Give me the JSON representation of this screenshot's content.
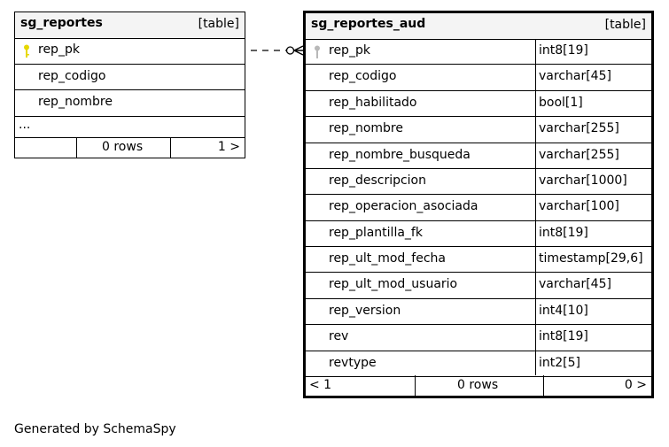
{
  "tables": [
    {
      "name": "sg_reportes",
      "kind": "[table]",
      "columns": [
        {
          "name": "rep_pk",
          "pk": true
        },
        {
          "name": "rep_codigo"
        },
        {
          "name": "rep_nombre"
        }
      ],
      "more": "...",
      "footer": {
        "left": "",
        "rows": "0 rows",
        "right": "1 >"
      }
    },
    {
      "name": "sg_reportes_aud",
      "kind": "[table]",
      "columns": [
        {
          "name": "rep_pk",
          "type": "int8[19]",
          "pk": true
        },
        {
          "name": "rep_codigo",
          "type": "varchar[45]"
        },
        {
          "name": "rep_habilitado",
          "type": "bool[1]"
        },
        {
          "name": "rep_nombre",
          "type": "varchar[255]"
        },
        {
          "name": "rep_nombre_busqueda",
          "type": "varchar[255]"
        },
        {
          "name": "rep_descripcion",
          "type": "varchar[1000]"
        },
        {
          "name": "rep_operacion_asociada",
          "type": "varchar[100]"
        },
        {
          "name": "rep_plantilla_fk",
          "type": "int8[19]"
        },
        {
          "name": "rep_ult_mod_fecha",
          "type": "timestamp[29,6]"
        },
        {
          "name": "rep_ult_mod_usuario",
          "type": "varchar[45]"
        },
        {
          "name": "rep_version",
          "type": "int4[10]"
        },
        {
          "name": "rev",
          "type": "int8[19]"
        },
        {
          "name": "revtype",
          "type": "int2[5]"
        }
      ],
      "footer": {
        "left": "< 1",
        "rows": "0 rows",
        "right": "0 >"
      }
    }
  ],
  "relationship": {
    "from": "sg_reportes.rep_pk",
    "to": "sg_reportes_aud.rep_pk",
    "style": "dashed",
    "cardinality": "zero-or-many"
  },
  "colors": {
    "pk_key_primary": "#e6d800",
    "pk_key_secondary": "#b8b8b8",
    "header_bg": "#f4f4f4"
  },
  "footer_text": "Generated by SchemaSpy"
}
